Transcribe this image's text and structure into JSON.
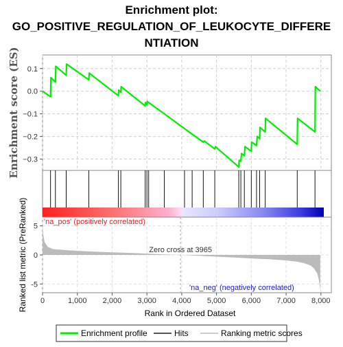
{
  "chart_data": {
    "type": "line",
    "title_lines": [
      "Enrichment plot:",
      "GO_POSITIVE_REGULATION_OF_LEUKOCYTE_DIFFERE",
      "NTIATION"
    ],
    "es_panel": {
      "ylabel": "Enrichment score (ES)",
      "ylim": [
        -0.35,
        0.16
      ],
      "yticks": [
        -0.3,
        -0.2,
        -0.1,
        0.0,
        0.1
      ],
      "ytick_labels": [
        "−0.3",
        "−0.2",
        "−0.1",
        "0.0",
        "0.1"
      ],
      "grid": true,
      "series": [
        {
          "name": "Enrichment profile",
          "color": "#00ee00",
          "x": [
            0,
            230,
            240,
            370,
            380,
            680,
            690,
            1330,
            1340,
            2180,
            2190,
            2250,
            2260,
            2950,
            2960,
            3000,
            3010,
            3050,
            3500,
            4080,
            4300,
            4620,
            4650,
            4950,
            4970,
            5640,
            5650,
            5700,
            5720,
            5800,
            5820,
            6000,
            6010,
            6150,
            6170,
            6240,
            6250,
            6400,
            6410,
            7320,
            7330,
            7830,
            7840,
            7980
          ],
          "y": [
            0.0,
            -0.025,
            0.06,
            0.04,
            0.11,
            0.07,
            0.12,
            0.05,
            0.08,
            -0.02,
            0.005,
            -0.005,
            0.02,
            -0.065,
            -0.05,
            -0.06,
            -0.045,
            -0.05,
            -0.1,
            -0.165,
            -0.19,
            -0.225,
            -0.22,
            -0.255,
            -0.245,
            -0.335,
            -0.305,
            -0.31,
            -0.275,
            -0.285,
            -0.245,
            -0.265,
            -0.225,
            -0.24,
            -0.2,
            -0.21,
            -0.16,
            -0.18,
            -0.12,
            -0.235,
            -0.12,
            -0.18,
            0.02,
            0.0
          ]
        }
      ]
    },
    "hits": [
      230,
      370,
      680,
      1330,
      2180,
      2250,
      2950,
      3000,
      3050,
      3500,
      4080,
      4300,
      4620,
      4950,
      5640,
      5700,
      5800,
      6000,
      6150,
      6240,
      6400,
      7320,
      7830
    ],
    "rank_panel": {
      "ylabel": "Ranked list metric (PreRanked)",
      "ylim": [
        -6.5,
        6.5
      ],
      "yticks": [
        -5,
        0,
        5
      ],
      "ytick_labels": [
        "-5",
        "0",
        "5"
      ],
      "pos_label": "'na_pos' (positively correlated)",
      "neg_label": "'na_neg' (negatively correlated)",
      "zero_cross_label": "Zero cross at 3965",
      "zero_cross": 3965,
      "metric_profile": {
        "x": [
          0,
          20,
          60,
          150,
          300,
          600,
          1000,
          1500,
          2000,
          2500,
          3000,
          3500,
          3965,
          4500,
          5000,
          5500,
          6000,
          6500,
          7000,
          7300,
          7500,
          7700,
          7800,
          7900,
          7950,
          7980
        ],
        "y": [
          5.2,
          3.5,
          2.2,
          1.4,
          1.0,
          0.85,
          0.7,
          0.55,
          0.45,
          0.35,
          0.22,
          0.1,
          0.0,
          -0.15,
          -0.3,
          -0.45,
          -0.6,
          -0.75,
          -0.95,
          -1.15,
          -1.4,
          -1.8,
          -2.3,
          -3.2,
          -4.5,
          -6.0
        ]
      }
    },
    "xlabel": "Rank in Ordered Dataset",
    "xlim": [
      0,
      8300
    ],
    "xticks": [
      0,
      1000,
      2000,
      3000,
      4000,
      5000,
      6000,
      7000,
      8000
    ],
    "xtick_labels": [
      "0",
      "1,000",
      "2,000",
      "3,000",
      "4,000",
      "5,000",
      "6,000",
      "7,000",
      "8,000"
    ],
    "legend": {
      "placement": "bottom",
      "entries": [
        {
          "label": "Enrichment profile",
          "color": "#00ee00"
        },
        {
          "label": "Hits",
          "color": "#555555"
        },
        {
          "label": "Ranking metric scores",
          "color": "#cccccc"
        }
      ]
    }
  }
}
